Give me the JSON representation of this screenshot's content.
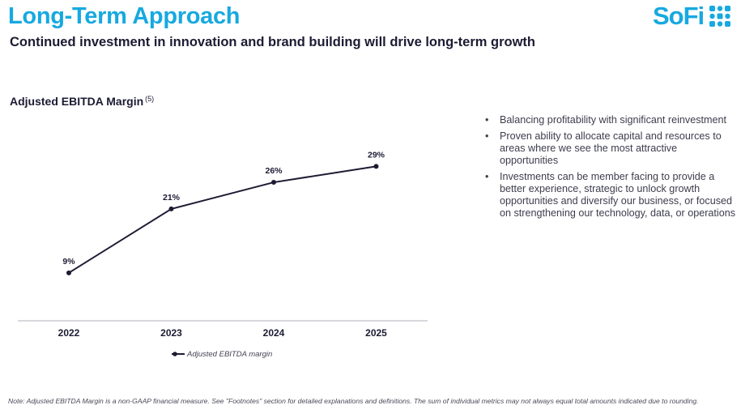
{
  "header": {
    "title": "Long-Term Approach",
    "subtitle": "Continued investment in innovation and brand building will drive long-term growth",
    "logo_text": "SoFi"
  },
  "chart_data": {
    "type": "line",
    "title": "Adjusted EBITDA Margin",
    "title_footnote": "(5)",
    "categories": [
      "2022",
      "2023",
      "2024",
      "2025"
    ],
    "series": [
      {
        "name": "Adjusted EBITDA margin",
        "values": [
          9,
          21,
          26,
          29
        ],
        "labels": [
          "9%",
          "21%",
          "26%",
          "29%"
        ],
        "color": "#1c1b33"
      }
    ],
    "ylim": [
      0,
      40
    ],
    "grid": false,
    "legend": "bottom-center"
  },
  "bullets": [
    "Balancing profitability with significant reinvestment",
    "Proven ability to allocate capital and resources to areas where we see the most attractive opportunities",
    "Investments can be member facing to provide a better experience, strategic to unlock growth opportunities and diversify our business, or focused on strengthening our technology, data, or operations"
  ],
  "bullet_symbol": "•",
  "footnote": "Note: Adjusted EBITDA Margin is a non-GAAP financial measure. See \"Footnotes\" section for detailed explanations and definitions. The sum of individual metrics may not always equal total amounts indicated due to rounding.",
  "colors": {
    "accent": "#17a9e0",
    "text": "#1c1b33",
    "axis": "#b0b0b8"
  }
}
